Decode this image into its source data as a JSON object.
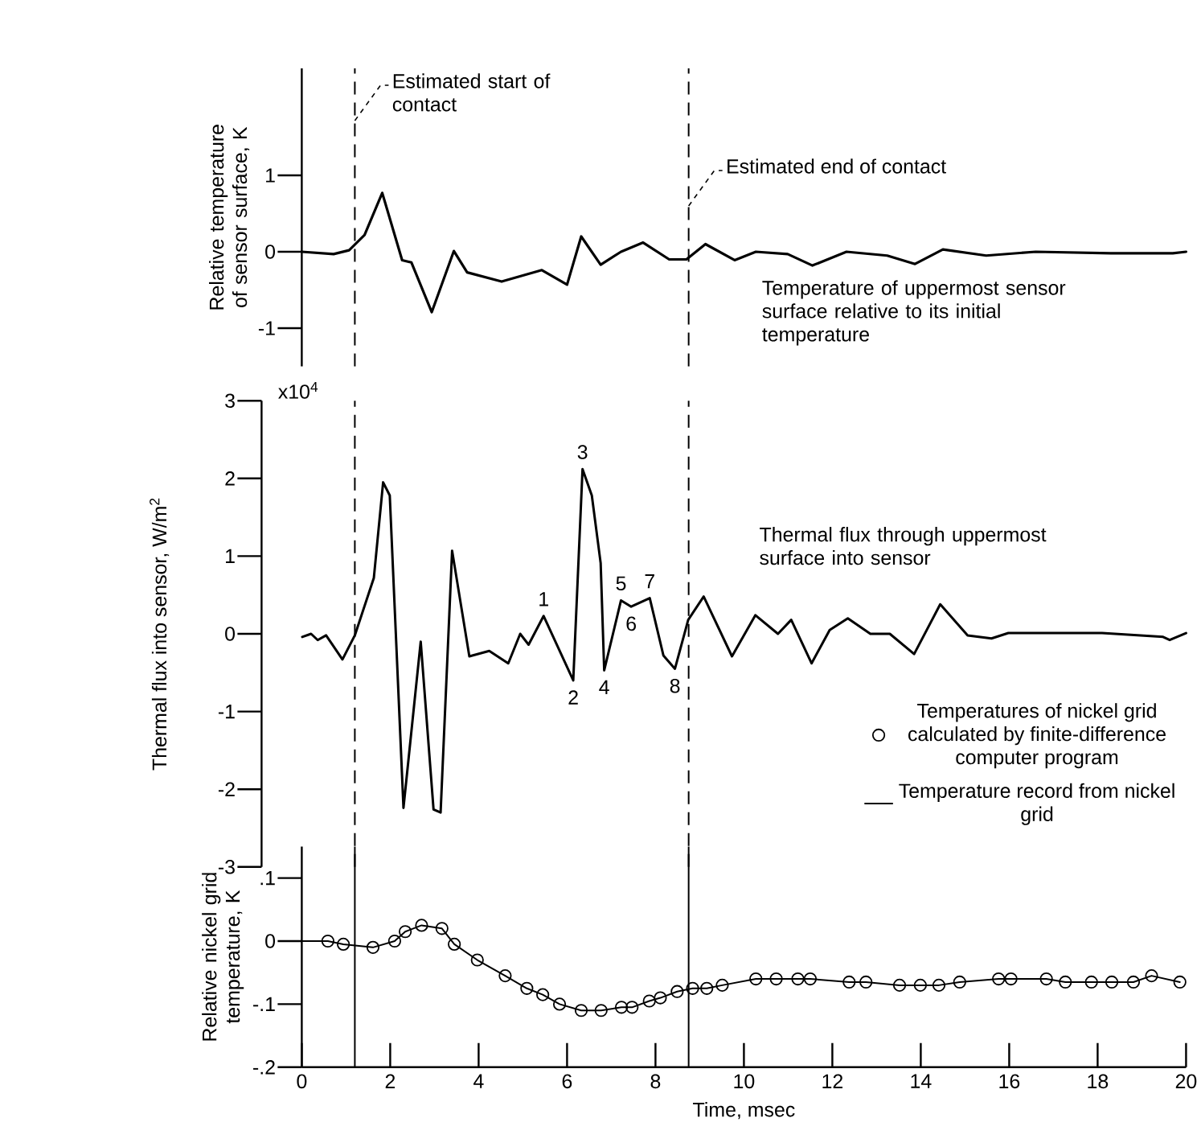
{
  "chart_data": [
    {
      "type": "line",
      "ylabel": "Relative temperature of sensor surface, K",
      "xlim": [
        0,
        20
      ],
      "ylim": [
        -1.5,
        2.4
      ],
      "yticks": [
        1,
        0,
        -1
      ],
      "tick_labels": "y",
      "color": "#000000",
      "x": [
        0,
        0.72,
        1.07,
        1.42,
        1.82,
        2.27,
        2.48,
        2.94,
        3.44,
        3.74,
        4.52,
        5.43,
        6.0,
        6.32,
        6.76,
        7.22,
        7.72,
        8.31,
        8.7,
        9.13,
        9.79,
        10.27,
        10.99,
        11.55,
        12.32,
        13.24,
        13.87,
        14.5,
        15.48,
        16.6,
        18.3,
        19.7,
        20
      ],
      "values": [
        0,
        -0.03,
        0.02,
        0.22,
        0.77,
        -0.11,
        -0.14,
        -0.79,
        0.01,
        -0.27,
        -0.39,
        -0.24,
        -0.43,
        0.2,
        -0.17,
        0,
        0.12,
        -0.1,
        -0.1,
        0.1,
        -0.11,
        0,
        -0.03,
        -0.18,
        0,
        -0.05,
        -0.16,
        0.03,
        -0.05,
        0,
        -0.02,
        -0.02,
        0
      ],
      "ref_lines": [
        {
          "axis": "x",
          "value": 1.2,
          "label": "Estimated start of contact",
          "line_style": "dashed"
        },
        {
          "axis": "x",
          "value": 8.75,
          "label": "Estimated end of contact",
          "line_style": "dashed"
        }
      ],
      "annotations": [
        "Temperature of uppermost sensor surface relative to its initial temperature"
      ]
    },
    {
      "type": "line",
      "ylabel": "Thermal flux into sensor, W/m$^{2}$",
      "xlim": [
        0,
        20
      ],
      "ylim": [
        -3,
        3
      ],
      "tick_labels": "y",
      "color": "#000000",
      "yticks": [
        3,
        2,
        1,
        0,
        -1,
        -2,
        -3
      ],
      "x": [
        0.01,
        0.21,
        0.36,
        0.55,
        0.92,
        1.2,
        1.63,
        1.84,
        1.99,
        2.3,
        2.69,
        2.98,
        3.14,
        3.4,
        3.79,
        4.24,
        4.67,
        4.94,
        5.13,
        5.47,
        6.14,
        6.35,
        6.56,
        6.76,
        6.84,
        7.22,
        7.45,
        7.87,
        8.18,
        8.44,
        8.74,
        9.09,
        9.73,
        10.26,
        10.77,
        11.07,
        11.53,
        11.94,
        12.35,
        12.86,
        13.3,
        13.85,
        14.44,
        15.06,
        15.6,
        15.98,
        18.1,
        19.48,
        19.63,
        20
      ],
      "values": [
        -0.04,
        0,
        -0.08,
        -0.02,
        -0.33,
        -0.02,
        0.72,
        1.95,
        1.78,
        -2.24,
        -0.1,
        -2.26,
        -2.3,
        1.07,
        -0.29,
        -0.22,
        -0.38,
        0,
        -0.14,
        0.23,
        -0.6,
        2.12,
        1.78,
        0.91,
        -0.47,
        0.43,
        0.35,
        0.46,
        -0.28,
        -0.45,
        0.18,
        0.48,
        -0.29,
        0.24,
        0,
        0.18,
        -0.38,
        0.05,
        0.2,
        0,
        0,
        -0.26,
        0.38,
        -0.02,
        -0.06,
        0.01,
        0.01,
        -0.04,
        -0.08,
        0.01
      ],
      "ref_lines": [
        {
          "axis": "x",
          "value": 1.2,
          "line_style": "dashed"
        },
        {
          "axis": "x",
          "value": 8.75,
          "line_style": "dashed"
        }
      ],
      "annotations": [
        "Thermal flux through uppermost surface into sensor",
        "x10$^{4}$",
        {
          "text": "1",
          "x": 5.47,
          "y": 0.23
        },
        {
          "text": "2",
          "x": 6.14,
          "y": -0.6
        },
        {
          "text": "3",
          "x": 6.35,
          "y": 2.12
        },
        {
          "text": "4",
          "x": 6.84,
          "y": -0.47
        },
        {
          "text": "5",
          "x": 7.22,
          "y": 0.43
        },
        {
          "text": "6",
          "x": 7.45,
          "y": 0.35
        },
        {
          "text": "7",
          "x": 7.87,
          "y": 0.46
        },
        {
          "text": "8",
          "x": 8.44,
          "y": -0.45
        }
      ]
    },
    {
      "type": "line",
      "xlabel": "Time, msec",
      "ylabel": "Relative nickel grid temperature, K",
      "xlim": [
        0,
        20
      ],
      "ylim": [
        -0.2,
        0.15
      ],
      "xticks": [
        0,
        2,
        4,
        6,
        8,
        10,
        12,
        14,
        16,
        18,
        20
      ],
      "yticks": [
        {
          "value": 0.1,
          "label": ".1"
        },
        0,
        {
          "value": -0.1,
          "label": "-.1"
        },
        {
          "value": -0.2,
          "label": "-.2"
        }
      ],
      "legend": "top right",
      "ref_lines": [
        {
          "axis": "x",
          "value": 1.2,
          "line_style": "solid"
        },
        {
          "axis": "x",
          "value": 8.75,
          "line_style": "solid"
        }
      ],
      "series": [
        {
          "name": "Temperatures of nickel grid calculated by finite-difference computer program",
          "type": "scatter",
          "marker": "circle",
          "color": "#000000",
          "x": [
            0.59,
            0.94,
            1.61,
            2.1,
            2.34,
            2.71,
            3.17,
            3.45,
            3.97,
            4.6,
            5.09,
            5.45,
            5.83,
            6.32,
            6.77,
            7.23,
            7.47,
            7.86,
            8.11,
            8.49,
            8.84,
            9.16,
            9.51,
            10.27,
            10.73,
            11.22,
            11.5,
            12.38,
            12.76,
            13.52,
            13.99,
            14.41,
            14.88,
            15.76,
            16.04,
            16.84,
            17.27,
            17.86,
            18.32,
            18.81,
            19.22,
            19.86
          ],
          "values": [
            0,
            -0.005,
            -0.01,
            0,
            0.015,
            0.025,
            0.02,
            -0.005,
            -0.03,
            -0.055,
            -0.075,
            -0.085,
            -0.1,
            -0.11,
            -0.11,
            -0.105,
            -0.105,
            -0.095,
            -0.09,
            -0.08,
            -0.075,
            -0.075,
            -0.07,
            -0.06,
            -0.06,
            -0.06,
            -0.06,
            -0.065,
            -0.065,
            -0.07,
            -0.07,
            -0.07,
            -0.065,
            -0.06,
            -0.06,
            -0.06,
            -0.065,
            -0.065,
            -0.065,
            -0.065,
            -0.055,
            -0.065
          ]
        },
        {
          "name": "Temperature record from nickel grid",
          "type": "line",
          "color": "#000000",
          "x": [
            0,
            0.59,
            0.94,
            1.61,
            2.1,
            2.34,
            2.71,
            3.17,
            3.45,
            3.97,
            4.6,
            5.09,
            5.45,
            5.83,
            6.32,
            6.77,
            7.23,
            7.47,
            7.86,
            8.11,
            8.49,
            8.84,
            9.16,
            9.51,
            10.27,
            10.73,
            11.22,
            11.5,
            12.38,
            12.76,
            13.52,
            13.99,
            14.41,
            14.88,
            15.76,
            16.04,
            16.84,
            17.27,
            17.86,
            18.32,
            18.81,
            19.22,
            19.86
          ],
          "values": [
            0,
            0,
            -0.005,
            -0.01,
            0,
            0.015,
            0.025,
            0.02,
            -0.005,
            -0.03,
            -0.055,
            -0.075,
            -0.085,
            -0.1,
            -0.11,
            -0.11,
            -0.105,
            -0.105,
            -0.095,
            -0.09,
            -0.08,
            -0.075,
            -0.075,
            -0.07,
            -0.06,
            -0.06,
            -0.06,
            -0.06,
            -0.065,
            -0.065,
            -0.07,
            -0.07,
            -0.07,
            -0.065,
            -0.06,
            -0.06,
            -0.06,
            -0.065,
            -0.065,
            -0.065,
            -0.065,
            -0.055,
            -0.065
          ]
        }
      ]
    }
  ]
}
